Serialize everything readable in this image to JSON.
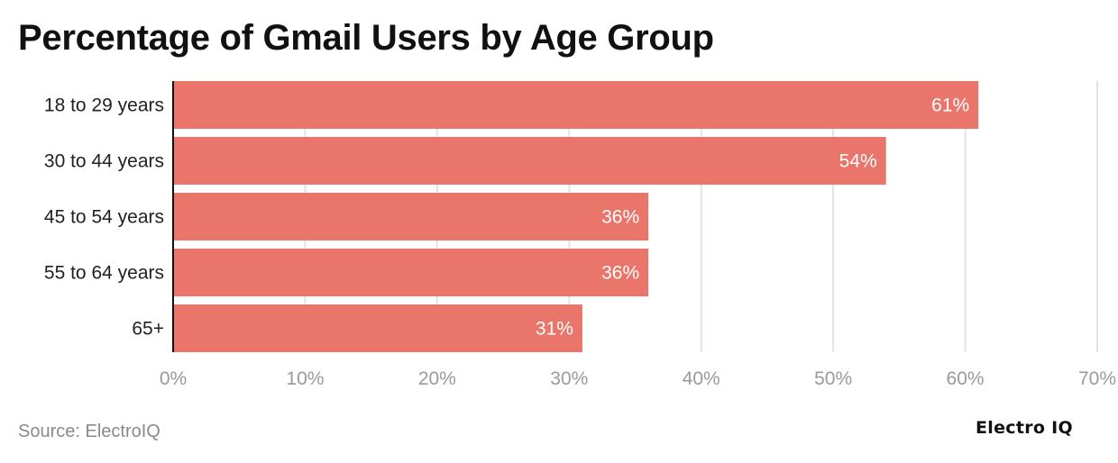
{
  "chart_data": {
    "type": "bar",
    "orientation": "horizontal",
    "title": "Percentage of Gmail Users by Age Group",
    "categories": [
      "18 to 29 years",
      "30 to 44 years",
      "45 to 54 years",
      "55 to 64 years",
      "65+"
    ],
    "values": [
      61,
      54,
      36,
      36,
      31
    ],
    "data_labels": [
      "61%",
      "54%",
      "36%",
      "36%",
      "31%"
    ],
    "xlim": [
      0,
      70
    ],
    "x_ticks": [
      0,
      10,
      20,
      30,
      40,
      50,
      60,
      70
    ],
    "x_tick_labels": [
      "0%",
      "10%",
      "20%",
      "30%",
      "40%",
      "50%",
      "60%",
      "70%"
    ],
    "grid": true,
    "bar_color": "#E9756B",
    "xlabel": "",
    "ylabel": ""
  },
  "source": "Source: ElectroIQ",
  "logo": "Electro IQ"
}
